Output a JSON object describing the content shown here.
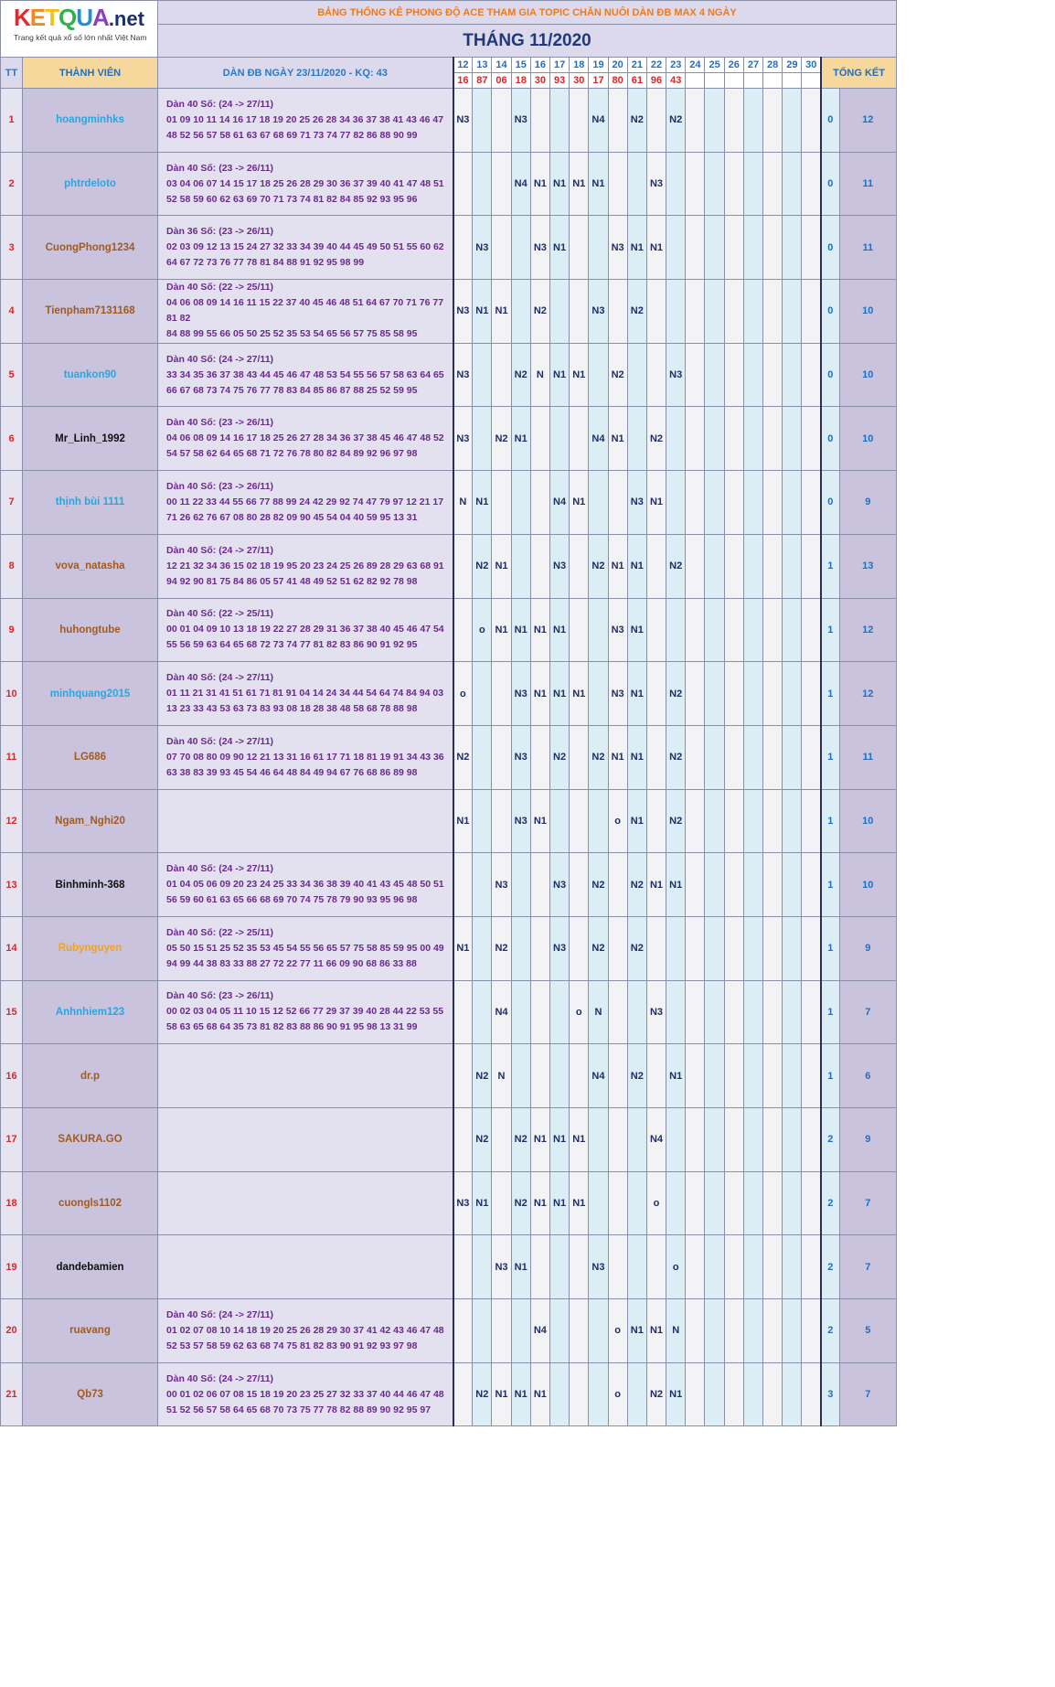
{
  "logo": {
    "brand_colored": [
      {
        "ch": "K",
        "color": "#e22a2a"
      },
      {
        "ch": "E",
        "color": "#f28a1b"
      },
      {
        "ch": "T",
        "color": "#f2c21b"
      },
      {
        "ch": "Q",
        "color": "#2fb24c"
      },
      {
        "ch": "U",
        "color": "#1f8fd6"
      },
      {
        "ch": "A",
        "color": "#8a3fc2"
      }
    ],
    "suffix": ".net",
    "tagline": "Trang kết quả xổ số lớn nhất Việt Nam"
  },
  "header": {
    "title": "BẢNG THỐNG KÊ PHONG ĐỘ ACE THAM GIA TOPIC CHĂN NUÔI DÀN ĐB MAX 4 NGÀY",
    "month": "THÁNG 11/2020",
    "col_tt": "TT",
    "col_member": "THÀNH VIÊN",
    "col_dan": "DÀN ĐB NGÀY 23/11/2020 - KQ: 43",
    "col_tong": "TỔNG KẾT"
  },
  "days": [
    "12",
    "13",
    "14",
    "15",
    "16",
    "17",
    "18",
    "19",
    "20",
    "21",
    "22",
    "23",
    "24",
    "25",
    "26",
    "27",
    "28",
    "29",
    "30"
  ],
  "results": [
    "16",
    "87",
    "06",
    "18",
    "30",
    "93",
    "30",
    "17",
    "80",
    "61",
    "96",
    "43",
    "",
    "",
    "",
    "",
    "",
    "",
    ""
  ],
  "rows": [
    {
      "tt": "1",
      "name": "hoangminhks",
      "color": "#2aa6de",
      "dan_title": "Dàn 40 Số: (24 -> 27/11)",
      "dan_l1": "01 09 10 11 14 16 17 18 19 20 25 26 28 34 36 37 38 41 43 46 47",
      "dan_l2": "48 52 56 57 58 61 63 67 68 69 71 73 74 77 82 86 88 90 99",
      "marks": [
        "N3",
        "",
        "",
        "N3",
        "",
        "",
        "",
        "N4",
        "",
        "N2",
        "",
        "N2",
        "",
        "",
        "",
        "",
        "",
        "",
        ""
      ],
      "t1": "0",
      "t2": "12"
    },
    {
      "tt": "2",
      "name": "phtrdeloto",
      "color": "#2aa6de",
      "dan_title": "Dàn 40 Số: (23 -> 26/11)",
      "dan_l1": "03 04 06 07 14 15 17 18 25 26 28 29 30 36 37 39 40 41 47 48 51",
      "dan_l2": "52 58 59 60 62 63 69 70 71 73 74 81 82 84 85 92 93 95 96",
      "marks": [
        "",
        "",
        "",
        "N4",
        "N1",
        "N1",
        "N1",
        "N1",
        "",
        "",
        "N3",
        "",
        "",
        "",
        "",
        "",
        "",
        "",
        ""
      ],
      "t1": "0",
      "t2": "11"
    },
    {
      "tt": "3",
      "name": "CuongPhong1234",
      "color": "#a35a1e",
      "dan_title": "Dàn 36 Số: (23 -> 26/11)",
      "dan_l1": "02 03 09 12 13 15 24 27 32 33 34 39 40 44 45 49 50 51 55 60 62",
      "dan_l2": "64 67 72 73 76 77 78 81 84 88 91 92 95 98 99",
      "marks": [
        "",
        "N3",
        "",
        "",
        "N3",
        "N1",
        "",
        "",
        "N3",
        "N1",
        "N1",
        "",
        "",
        "",
        "",
        "",
        "",
        "",
        ""
      ],
      "t1": "0",
      "t2": "11"
    },
    {
      "tt": "4",
      "name": "Tienpham7131168",
      "color": "#a35a1e",
      "dan_title": "Dàn 40 Số: (22 -> 25/11)",
      "dan_l1": "04 06 08 09 14 16 11 15 22 37 40 45 46 48 51 64 67 70 71 76 77 81 82",
      "dan_l2": "84 88 99 55 66 05 50 25 52 35 53 54 65 56 57 75 85 58 95",
      "marks": [
        "N3",
        "N1",
        "N1",
        "",
        "N2",
        "",
        "",
        "N3",
        "",
        "N2",
        "",
        "",
        "",
        "",
        "",
        "",
        "",
        "",
        ""
      ],
      "t1": "0",
      "t2": "10"
    },
    {
      "tt": "5",
      "name": "tuankon90",
      "color": "#2aa6de",
      "dan_title": "Dàn 40 Số: (24 -> 27/11)",
      "dan_l1": "33 34 35 36 37 38 43 44 45 46 47 48 53 54 55 56 57 58 63 64 65",
      "dan_l2": "66 67 68 73 74 75 76 77 78 83 84 85 86 87 88 25 52 59 95",
      "marks": [
        "N3",
        "",
        "",
        "N2",
        "N",
        "N1",
        "N1",
        "",
        "N2",
        "",
        "",
        "N3",
        "",
        "",
        "",
        "",
        "",
        "",
        ""
      ],
      "t1": "0",
      "t2": "10"
    },
    {
      "tt": "6",
      "name": "Mr_Linh_1992",
      "color": "#111111",
      "dan_title": "Dàn 40 Số: (23 -> 26/11)",
      "dan_l1": "04 06 08 09 14 16 17 18 25 26 27 28 34 36 37 38 45 46 47 48 52",
      "dan_l2": "54 57 58 62 64 65 68 71 72 76 78 80 82 84 89 92 96 97 98",
      "marks": [
        "N3",
        "",
        "N2",
        "N1",
        "",
        "",
        "",
        "N4",
        "N1",
        "",
        "N2",
        "",
        "",
        "",
        "",
        "",
        "",
        "",
        ""
      ],
      "t1": "0",
      "t2": "10"
    },
    {
      "tt": "7",
      "name": "thịnh bùi 1111",
      "color": "#2aa6de",
      "dan_title": "Dàn 40 Số: (23 -> 26/11)",
      "dan_l1": "00 11 22 33 44 55 66 77 88 99 24 42 29 92 74 47 79 97 12 21 17",
      "dan_l2": "71 26 62 76 67 08 80 28 82 09 90 45 54 04 40 59 95 13 31",
      "marks": [
        "N",
        "N1",
        "",
        "",
        "",
        "N4",
        "N1",
        "",
        "",
        "N3",
        "N1",
        "",
        "",
        "",
        "",
        "",
        "",
        "",
        ""
      ],
      "t1": "0",
      "t2": "9"
    },
    {
      "tt": "8",
      "name": "vova_natasha",
      "color": "#a35a1e",
      "dan_title": "Dàn 40 Số: (24 -> 27/11)",
      "dan_l1": "12 21 32 34 36 15 02 18 19 95 20 23 24 25 26 89 28 29 63 68 91",
      "dan_l2": "94 92 90 81 75 84 86 05 57 41 48 49 52 51 62 82 92 78 98",
      "marks": [
        "",
        "N2",
        "N1",
        "",
        "",
        "N3",
        "",
        "N2",
        "N1",
        "N1",
        "",
        "N2",
        "",
        "",
        "",
        "",
        "",
        "",
        ""
      ],
      "t1": "1",
      "t2": "13"
    },
    {
      "tt": "9",
      "name": "huhongtube",
      "color": "#a35a1e",
      "dan_title": "Dàn 40 Số: (22 -> 25/11)",
      "dan_l1": "00 01 04 09 10 13 18 19 22 27 28 29 31 36 37 38 40 45 46 47 54",
      "dan_l2": "55 56 59 63 64 65 68 72 73 74 77 81 82 83 86 90 91 92 95",
      "marks": [
        "",
        "o",
        "N1",
        "N1",
        "N1",
        "N1",
        "",
        "",
        "N3",
        "N1",
        "",
        "",
        "",
        "",
        "",
        "",
        "",
        "",
        ""
      ],
      "t1": "1",
      "t2": "12"
    },
    {
      "tt": "10",
      "name": "minhquang2015",
      "color": "#2aa6de",
      "dan_title": "Dàn 40 Số: (24 -> 27/11)",
      "dan_l1": "01 11 21 31 41 51 61 71 81 91 04 14 24 34 44 54 64 74 84 94 03",
      "dan_l2": "13 23 33 43 53 63 73 83 93 08 18 28 38 48 58 68 78 88 98",
      "marks": [
        "o",
        "",
        "",
        "N3",
        "N1",
        "N1",
        "N1",
        "",
        "N3",
        "N1",
        "",
        "N2",
        "",
        "",
        "",
        "",
        "",
        "",
        ""
      ],
      "t1": "1",
      "t2": "12"
    },
    {
      "tt": "11",
      "name": "LG686",
      "color": "#a35a1e",
      "dan_title": "Dàn 40 Số: (24 -> 27/11)",
      "dan_l1": "07 70 08 80 09 90 12 21 13 31 16 61 17 71 18 81 19 91 34 43 36",
      "dan_l2": "63 38 83 39 93 45 54 46 64 48 84 49 94 67 76 68 86 89 98",
      "marks": [
        "N2",
        "",
        "",
        "N3",
        "",
        "N2",
        "",
        "N2",
        "N1",
        "N1",
        "",
        "N2",
        "",
        "",
        "",
        "",
        "",
        "",
        ""
      ],
      "t1": "1",
      "t2": "11"
    },
    {
      "tt": "12",
      "name": "Ngam_Nghi20",
      "color": "#a35a1e",
      "dan_title": "",
      "dan_l1": "",
      "dan_l2": "",
      "marks": [
        "N1",
        "",
        "",
        "N3",
        "N1",
        "",
        "",
        "",
        "o",
        "N1",
        "",
        "N2",
        "",
        "",
        "",
        "",
        "",
        "",
        ""
      ],
      "t1": "1",
      "t2": "10"
    },
    {
      "tt": "13",
      "name": "Binhminh-368",
      "color": "#111111",
      "dan_title": "Dàn 40 Số: (24 -> 27/11)",
      "dan_l1": "01 04 05 06 09 20 23 24 25 33 34 36 38 39 40 41 43 45 48 50 51",
      "dan_l2": "56 59 60 61 63 65 66 68 69 70 74 75 78 79 90 93 95 96 98",
      "marks": [
        "",
        "",
        "N3",
        "",
        "",
        "N3",
        "",
        "N2",
        "",
        "N2",
        "N1",
        "N1",
        "",
        "",
        "",
        "",
        "",
        "",
        ""
      ],
      "t1": "1",
      "t2": "10"
    },
    {
      "tt": "14",
      "name": "Rubynguyen",
      "color": "#f2a21b",
      "dan_title": "Dàn 40 Số: (22 -> 25/11)",
      "dan_l1": "05 50 15 51 25 52 35 53 45 54 55 56 65 57 75 58 85 59 95 00 49",
      "dan_l2": "94 99 44 38 83 33 88 27 72 22 77 11 66 09 90 68 86 33 88",
      "marks": [
        "N1",
        "",
        "N2",
        "",
        "",
        "N3",
        "",
        "N2",
        "",
        "N2",
        "",
        "",
        "",
        "",
        "",
        "",
        "",
        "",
        ""
      ],
      "t1": "1",
      "t2": "9"
    },
    {
      "tt": "15",
      "name": "Anhnhiem123",
      "color": "#2aa6de",
      "dan_title": "Dàn 40 Số: (23 -> 26/11)",
      "dan_l1": "00 02 03 04 05 11 10 15 12 52 66 77 29 37 39 40 28 44 22 53 55",
      "dan_l2": "58 63 65 68 64 35 73 81 82 83 88 86 90 91 95 98 13 31 99",
      "marks": [
        "",
        "",
        "N4",
        "",
        "",
        "",
        "o",
        "N",
        "",
        "",
        "N3",
        "",
        "",
        "",
        "",
        "",
        "",
        "",
        ""
      ],
      "t1": "1",
      "t2": "7"
    },
    {
      "tt": "16",
      "name": "dr.p",
      "color": "#a35a1e",
      "dan_title": "",
      "dan_l1": "",
      "dan_l2": "",
      "marks": [
        "",
        "N2",
        "N",
        "",
        "",
        "",
        "",
        "N4",
        "",
        "N2",
        "",
        "N1",
        "",
        "",
        "",
        "",
        "",
        "",
        ""
      ],
      "t1": "1",
      "t2": "6"
    },
    {
      "tt": "17",
      "name": "SAKURA.GO",
      "color": "#a35a1e",
      "dan_title": "",
      "dan_l1": "",
      "dan_l2": "",
      "marks": [
        "",
        "N2",
        "",
        "N2",
        "N1",
        "N1",
        "N1",
        "",
        "",
        "",
        "N4",
        "",
        "",
        "",
        "",
        "",
        "",
        "",
        ""
      ],
      "t1": "2",
      "t2": "9"
    },
    {
      "tt": "18",
      "name": "cuongls1102",
      "color": "#a35a1e",
      "dan_title": "",
      "dan_l1": "",
      "dan_l2": "",
      "marks": [
        "N3",
        "N1",
        "",
        "N2",
        "N1",
        "N1",
        "N1",
        "",
        "",
        "",
        "o",
        "",
        "",
        "",
        "",
        "",
        "",
        "",
        ""
      ],
      "t1": "2",
      "t2": "7"
    },
    {
      "tt": "19",
      "name": "dandebamien",
      "color": "#111111",
      "dan_title": "",
      "dan_l1": "",
      "dan_l2": "",
      "marks": [
        "",
        "",
        "N3",
        "N1",
        "",
        "",
        "",
        "N3",
        "",
        "",
        "",
        "o",
        "",
        "",
        "",
        "",
        "",
        "",
        ""
      ],
      "t1": "2",
      "t2": "7"
    },
    {
      "tt": "20",
      "name": "ruavang",
      "color": "#a35a1e",
      "dan_title": "Dàn 40 Số: (24 -> 27/11)",
      "dan_l1": "01 02 07 08 10 14 18 19 20 25 26 28 29 30 37 41 42 43 46 47 48",
      "dan_l2": "52 53 57 58 59 62 63 68 74 75 81 82 83 90 91 92 93 97 98",
      "marks": [
        "",
        "",
        "",
        "",
        "N4",
        "",
        "",
        "",
        "o",
        "N1",
        "N1",
        "N",
        "",
        "",
        "",
        "",
        "",
        "",
        ""
      ],
      "t1": "2",
      "t2": "5"
    },
    {
      "tt": "21",
      "name": "Qb73",
      "color": "#a35a1e",
      "dan_title": "Dàn 40 Số: (24 -> 27/11)",
      "dan_l1": "00 01 02 06 07 08 15 18 19 20 23 25 27 32 33 37 40 44 46 47 48",
      "dan_l2": "51 52 56 57 58 64 65 68 70 73 75 77 78 82 88 89 90 92 95 97",
      "marks": [
        "",
        "N2",
        "N1",
        "N1",
        "N1",
        "",
        "",
        "",
        "o",
        "",
        "N2",
        "N1",
        "",
        "",
        "",
        "",
        "",
        "",
        ""
      ],
      "t1": "3",
      "t2": "7"
    }
  ]
}
